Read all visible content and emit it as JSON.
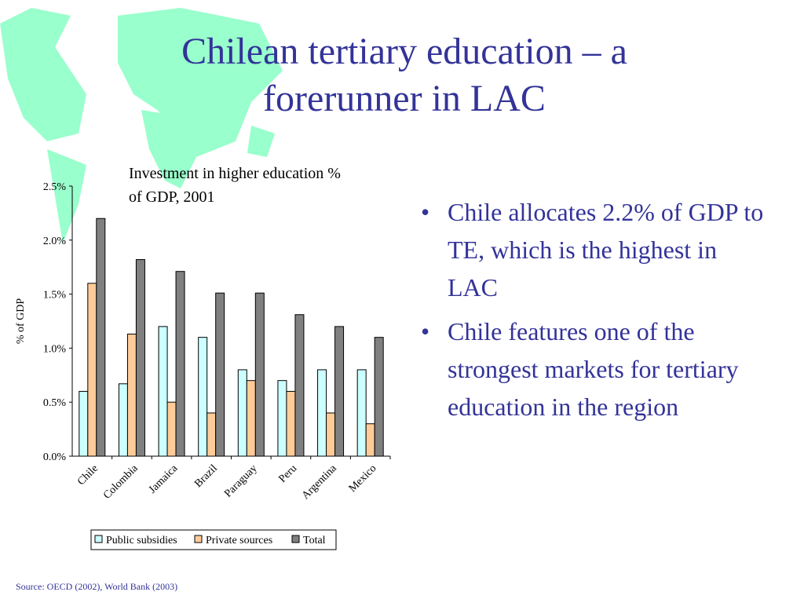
{
  "title": "Chilean tertiary education – a forerunner in LAC",
  "bullets": [
    "Chile allocates 2.2% of GDP to TE, which is the highest in LAC",
    "Chile features one of the strongest markets for tertiary education in the region"
  ],
  "source": "Source: OECD (2002), World Bank (2003)",
  "chart_data": {
    "type": "bar",
    "title": "Investment in higher education % of GDP, 2001",
    "y_label": "% of GDP",
    "categories": [
      "Chile",
      "Colombia",
      "Jamaica",
      "Brazil",
      "Paraguay",
      "Peru",
      "Argentina",
      "Mexico"
    ],
    "series": [
      {
        "name": "Public subsidies",
        "color": "#ccffff",
        "values": [
          0.6,
          0.67,
          1.2,
          1.1,
          0.8,
          0.7,
          0.8,
          0.8
        ]
      },
      {
        "name": "Private sources",
        "color": "#ffcc99",
        "values": [
          1.6,
          1.13,
          0.5,
          0.4,
          0.7,
          0.6,
          0.4,
          0.3
        ]
      },
      {
        "name": "Total",
        "color": "#808080",
        "values": [
          2.2,
          1.82,
          1.71,
          1.51,
          1.51,
          1.31,
          1.2,
          1.1
        ]
      }
    ],
    "ylim": [
      0,
      2.5
    ],
    "yticks": [
      {
        "value": 0,
        "label": "0.0%"
      },
      {
        "value": 0.5,
        "label": "0.5%"
      },
      {
        "value": 1,
        "label": "1.0%"
      },
      {
        "value": 1.5,
        "label": "1.5%"
      },
      {
        "value": 2,
        "label": "2.0%"
      },
      {
        "value": 2.5,
        "label": "2.5%"
      }
    ]
  }
}
